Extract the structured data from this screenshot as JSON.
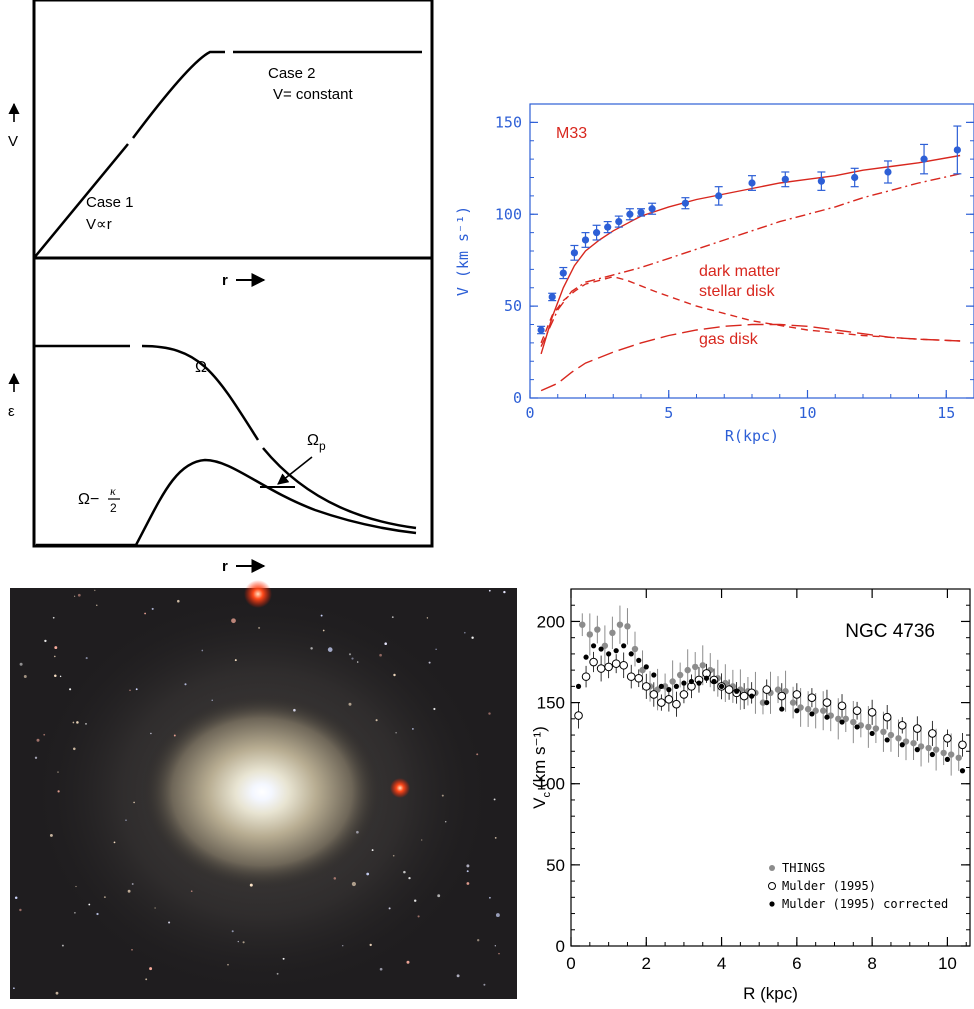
{
  "panel_a": {
    "top": {
      "ylabel": "V",
      "xlabel": "r",
      "case1_line1": "Case 1",
      "case1_line2": "V∝r",
      "case2_line1": "Case 2",
      "case2_line2": "V= constant"
    },
    "bottom": {
      "ylabel": "ε",
      "xlabel": "r",
      "omega_label": "Ω",
      "omega_p_label": "Ω",
      "omega_p_sub": "p",
      "omega_kappa_label": "Ω−",
      "kappa_num": "κ",
      "kappa_den": "2"
    }
  },
  "galaxy_image": {
    "subject": "ngc-4736-photo"
  },
  "chart_data": [
    {
      "type": "scatter",
      "title": "M33",
      "xlabel": "R(kpc)",
      "ylabel": "V (km s⁻¹)",
      "xlim": [
        0,
        16
      ],
      "ylim": [
        0,
        160
      ],
      "xticks": [
        "0",
        "5",
        "10",
        "15"
      ],
      "yticks": [
        "0",
        "50",
        "100",
        "150"
      ],
      "points": {
        "name": "",
        "x": [
          0.4,
          0.8,
          1.2,
          1.6,
          2.0,
          2.4,
          2.8,
          3.2,
          3.6,
          4.0,
          4.4,
          5.6,
          6.8,
          8.0,
          9.2,
          10.5,
          11.7,
          12.9,
          14.2,
          15.4
        ],
        "y": [
          37,
          55,
          68,
          79,
          86,
          90,
          93,
          96,
          100,
          101,
          103,
          106,
          110,
          117,
          119,
          118,
          120,
          123,
          130,
          135
        ],
        "err": [
          2,
          2,
          3,
          4,
          4,
          4,
          3,
          3,
          3,
          2,
          3,
          3,
          5,
          4,
          4,
          5,
          5,
          6,
          8,
          13
        ]
      },
      "curves": [
        {
          "name": "total",
          "style": "solid",
          "x": [
            0.4,
            0.8,
            1.2,
            1.6,
            2.0,
            2.5,
            3.0,
            4.0,
            5.0,
            6.0,
            7.0,
            8.0,
            9.0,
            10.0,
            11.0,
            12.0,
            13.0,
            14.0,
            15.5
          ],
          "y": [
            24,
            44,
            60,
            72,
            80,
            86,
            91,
            99,
            104,
            108,
            111,
            114,
            117,
            119,
            121,
            124,
            126,
            128,
            132
          ]
        },
        {
          "name": "dark matter",
          "style": "dashdot",
          "x": [
            0.4,
            1.0,
            1.5,
            2.0,
            2.5,
            3.0,
            4.0,
            5.0,
            6.0,
            7.0,
            8.0,
            9.0,
            10.0,
            11.0,
            12.0,
            13.0,
            14.0,
            15.5
          ],
          "y": [
            28,
            48,
            58,
            63,
            65,
            67,
            71,
            76,
            81,
            86,
            91,
            96,
            100,
            104,
            109,
            113,
            117,
            122
          ]
        },
        {
          "name": "stellar disk",
          "style": "dashed",
          "x": [
            0.4,
            0.8,
            1.2,
            1.6,
            2.0,
            2.5,
            3.0,
            3.5,
            4.5,
            6.0,
            8.0,
            10.0,
            12.0,
            14.0,
            15.5
          ],
          "y": [
            30,
            45,
            53,
            58,
            62,
            64,
            66,
            64,
            58,
            50,
            42,
            37,
            34,
            32,
            31
          ]
        },
        {
          "name": "gas disk",
          "style": "longdash",
          "x": [
            0.4,
            1.0,
            1.5,
            2.0,
            2.5,
            3.0,
            4.0,
            5.0,
            6.0,
            7.0,
            8.0,
            9.0,
            10.0,
            11.0,
            12.0,
            13.0,
            14.0,
            15.5
          ],
          "y": [
            4,
            8,
            14,
            19,
            22,
            25,
            30,
            34,
            37,
            39,
            40,
            40,
            39,
            37,
            35,
            33,
            32,
            31
          ]
        }
      ],
      "annotations": [
        "dark matter",
        "stellar disk",
        "gas disk"
      ]
    },
    {
      "type": "scatter",
      "title": "NGC 4736",
      "xlabel": "R (kpc)",
      "ylabel": "V",
      "ylabel_sub": "c",
      "ylabel_unit": "(km s⁻¹)",
      "xlim": [
        0,
        10.6
      ],
      "ylim": [
        0,
        220
      ],
      "xticks": [
        "0",
        "2",
        "4",
        "6",
        "8",
        "10"
      ],
      "yticks": [
        "0",
        "50",
        "100",
        "150",
        "200"
      ],
      "legend": [
        "THINGS",
        "Mulder (1995)",
        "Mulder (1995) corrected"
      ],
      "series": [
        {
          "name": "THINGS",
          "x": [
            0.3,
            0.5,
            0.7,
            0.9,
            1.1,
            1.3,
            1.5,
            1.7,
            1.9,
            2.1,
            2.3,
            2.5,
            2.7,
            2.9,
            3.1,
            3.3,
            3.5,
            3.7,
            3.9,
            4.1,
            4.3,
            4.5,
            4.7,
            4.9,
            5.1,
            5.3,
            5.5,
            5.7,
            5.9,
            6.1,
            6.3,
            6.5,
            6.7,
            6.9,
            7.1,
            7.3,
            7.5,
            7.7,
            7.9,
            8.1,
            8.3,
            8.5,
            8.7,
            8.9,
            9.1,
            9.3,
            9.5,
            9.7,
            9.9,
            10.1,
            10.3
          ],
          "y": [
            198,
            192,
            195,
            185,
            193,
            198,
            197,
            183,
            170,
            160,
            158,
            160,
            163,
            167,
            170,
            172,
            173,
            170,
            165,
            162,
            160,
            158,
            157,
            156,
            150,
            156,
            158,
            157,
            150,
            147,
            146,
            145,
            145,
            142,
            140,
            140,
            138,
            136,
            135,
            134,
            132,
            130,
            128,
            126,
            125,
            123,
            122,
            121,
            119,
            118,
            116
          ]
        },
        {
          "name": "Mulder (1995)",
          "x": [
            0.2,
            0.4,
            0.6,
            0.8,
            1.0,
            1.2,
            1.4,
            1.6,
            1.8,
            2.0,
            2.2,
            2.4,
            2.6,
            2.8,
            3.0,
            3.2,
            3.4,
            3.6,
            3.8,
            4.0,
            4.2,
            4.4,
            4.6,
            4.8,
            5.2,
            5.6,
            6.0,
            6.4,
            6.8,
            7.2,
            7.6,
            8.0,
            8.4,
            8.8,
            9.2,
            9.6,
            10.0,
            10.4
          ],
          "y": [
            142,
            166,
            175,
            171,
            172,
            174,
            173,
            166,
            165,
            160,
            155,
            150,
            152,
            149,
            155,
            160,
            164,
            168,
            164,
            160,
            158,
            156,
            154,
            156,
            158,
            154,
            155,
            153,
            150,
            148,
            145,
            144,
            141,
            136,
            134,
            131,
            128,
            124
          ]
        },
        {
          "name": "Mulder (1995) corrected",
          "x": [
            0.2,
            0.4,
            0.6,
            0.8,
            1.0,
            1.2,
            1.4,
            1.6,
            1.8,
            2.0,
            2.2,
            2.4,
            2.6,
            2.8,
            3.0,
            3.2,
            3.4,
            3.6,
            3.8,
            4.0,
            4.4,
            4.8,
            5.2,
            5.6,
            6.0,
            6.4,
            6.8,
            7.2,
            7.6,
            8.0,
            8.4,
            8.8,
            9.2,
            9.6,
            10.0,
            10.4
          ],
          "y": [
            160,
            178,
            185,
            183,
            180,
            182,
            185,
            180,
            176,
            172,
            167,
            160,
            158,
            160,
            162,
            163,
            162,
            165,
            163,
            160,
            157,
            154,
            150,
            146,
            145,
            143,
            141,
            138,
            135,
            131,
            127,
            124,
            121,
            118,
            115,
            108
          ]
        }
      ]
    }
  ]
}
